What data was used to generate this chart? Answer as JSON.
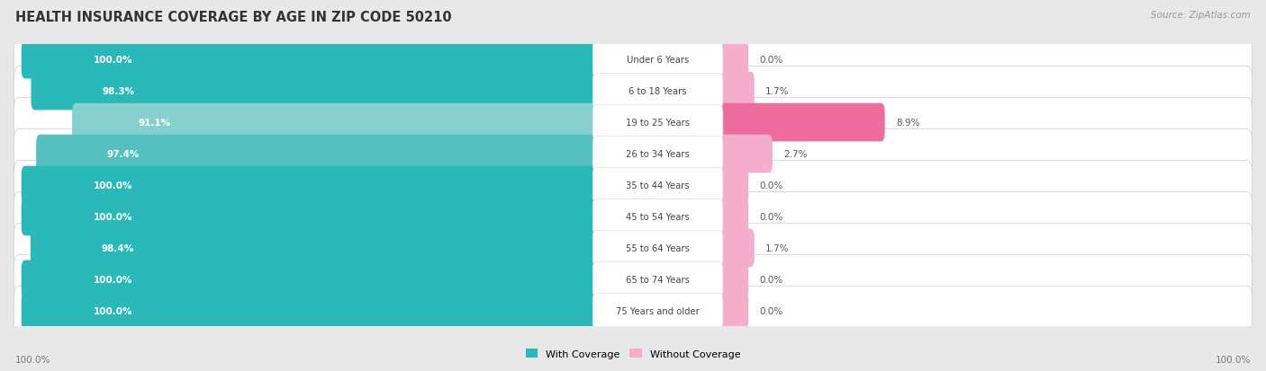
{
  "title": "HEALTH INSURANCE COVERAGE BY AGE IN ZIP CODE 50210",
  "source": "Source: ZipAtlas.com",
  "categories": [
    "Under 6 Years",
    "6 to 18 Years",
    "19 to 25 Years",
    "26 to 34 Years",
    "35 to 44 Years",
    "45 to 54 Years",
    "55 to 64 Years",
    "65 to 74 Years",
    "75 Years and older"
  ],
  "with_coverage": [
    100.0,
    98.3,
    91.1,
    97.4,
    100.0,
    100.0,
    98.4,
    100.0,
    100.0
  ],
  "without_coverage": [
    0.0,
    1.7,
    8.9,
    2.7,
    0.0,
    0.0,
    1.7,
    0.0,
    0.0
  ],
  "color_with_100": "#2DBBBB",
  "color_with_98": "#2DBBBB",
  "color_with_97": "#55C5C5",
  "color_with_91": "#88D5D5",
  "color_without_0": "#F4AECB",
  "color_without_low": "#F4AECB",
  "color_without_high": "#EE6B9E",
  "bg_color": "#e8e8e8",
  "title_fontsize": 10.5,
  "source_fontsize": 7.5
}
